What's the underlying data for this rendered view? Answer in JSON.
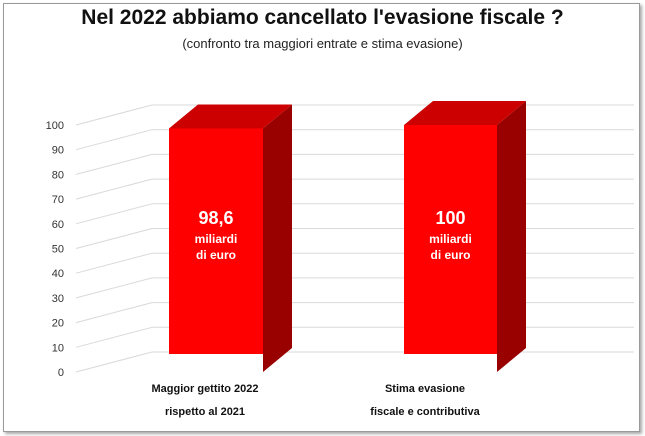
{
  "title": "Nel 2022 abbiamo cancellato l'evasione fiscale ?",
  "subtitle": "(confronto tra maggiori entrate e stima evasione)",
  "colors": {
    "bar_front": "#ff0000",
    "bar_top": "#cc0000",
    "bar_side": "#990000",
    "grid": "#d9d9d9",
    "text_bar": "#ffffff"
  },
  "chart_data": {
    "type": "bar",
    "title": "Nel 2022 abbiamo cancellato l'evasione fiscale ?",
    "subtitle": "(confronto tra maggiori entrate e stima evasione)",
    "categories": [
      [
        "Maggior gettito 2022",
        "rispetto al 2021"
      ],
      [
        "Stima evasione",
        "fiscale e contributiva"
      ]
    ],
    "values": [
      98.6,
      100
    ],
    "bar_labels": [
      {
        "value": "98,6",
        "unit_line1": "miliardi",
        "unit_line2": "di euro"
      },
      {
        "value": "100",
        "unit_line1": "miliardi",
        "unit_line2": "di euro"
      }
    ],
    "yticks": [
      0,
      10,
      20,
      30,
      40,
      50,
      60,
      70,
      80,
      90,
      100
    ],
    "ylim": [
      0,
      100
    ],
    "grid": true,
    "three_d": true
  }
}
